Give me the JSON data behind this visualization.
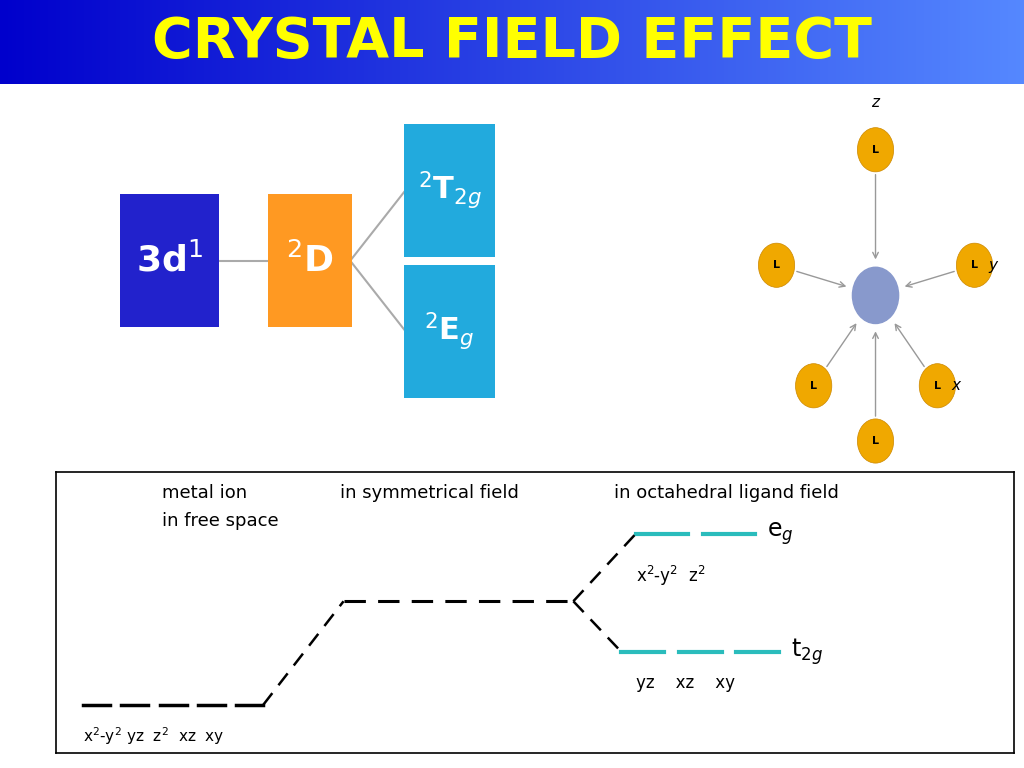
{
  "title": "CRYSTAL FIELD EFFECT",
  "title_color": "#FFFF00",
  "title_bg_left": "#0000CC",
  "title_bg_right": "#5588FF",
  "title_fontsize": 40,
  "box_3d1_color": "#2222CC",
  "box_2D_color": "#FF9922",
  "box_cyan_color": "#22AADD",
  "teal_color": "#2ABCBC",
  "label_metal_line1": "metal ion",
  "label_metal_line2": "in free space",
  "label_sym": "in symmetrical field",
  "label_oct": "in octahedral ligand field"
}
